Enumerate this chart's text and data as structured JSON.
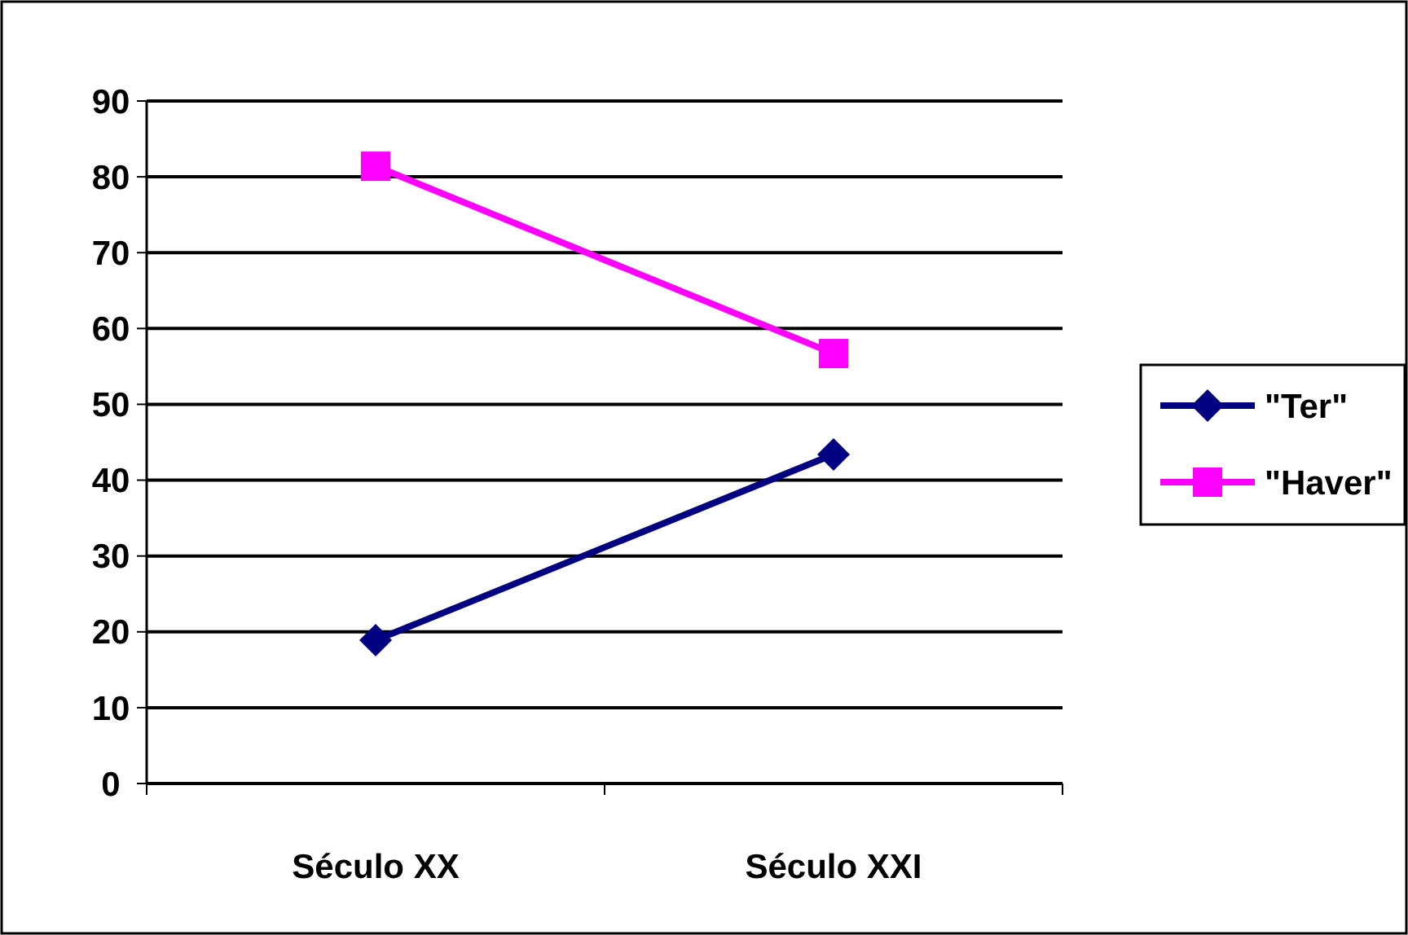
{
  "chart_data": {
    "type": "line",
    "categories": [
      "Século XX",
      "Século XXI"
    ],
    "series": [
      {
        "name": "\"Ter\"",
        "color": "#000080",
        "values": [
          18.9,
          43.4
        ],
        "marker": "diamond"
      },
      {
        "name": "\"Haver\"",
        "color": "#ff00ff",
        "values": [
          81.4,
          56.7
        ],
        "marker": "square"
      }
    ],
    "ylim": [
      0,
      90
    ],
    "yticks": [
      0,
      10,
      20,
      30,
      40,
      50,
      60,
      70,
      80,
      90
    ],
    "grid": "y",
    "legend": "right",
    "line_style": "solid"
  }
}
